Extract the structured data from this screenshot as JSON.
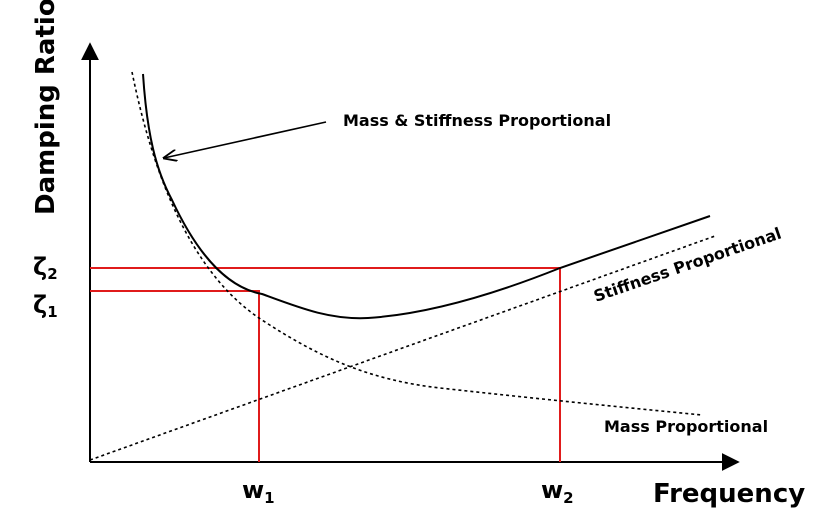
{
  "axes": {
    "x_title": "Frequency",
    "y_title": "Damping Ratio"
  },
  "series_labels": {
    "mass_stiffness": "Mass & Stiffness Proportional",
    "stiffness": "Stiffness Proportional",
    "mass": "Mass Proportional"
  },
  "ticks": {
    "x": [
      {
        "base": "w",
        "sub": "1"
      },
      {
        "base": "w",
        "sub": "2"
      }
    ],
    "y": [
      {
        "base": "ζ",
        "sub": "2"
      },
      {
        "base": "ζ",
        "sub": "1"
      }
    ]
  },
  "colors": {
    "curves": "#000000",
    "guides": "#e01b1b",
    "background": "#ffffff"
  }
}
